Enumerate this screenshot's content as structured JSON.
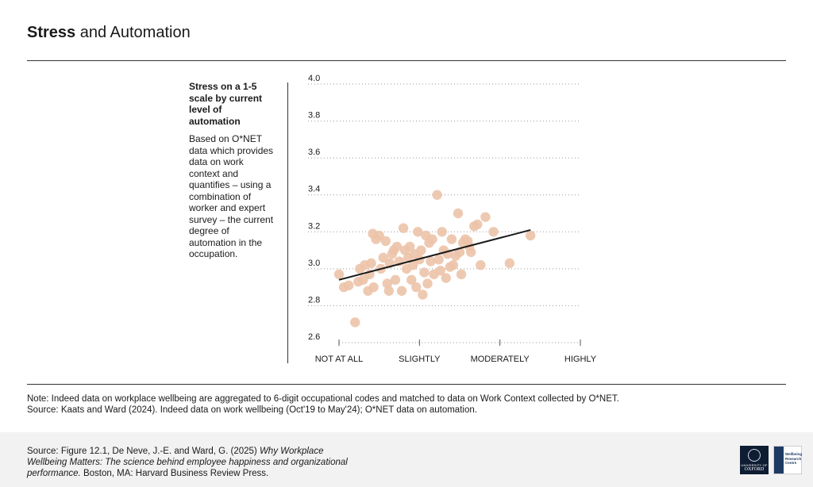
{
  "title": {
    "bold": "Stress",
    "rest": " and Automation"
  },
  "sidebar": {
    "heading": "Stress on a 1-5 scale by current level of automation",
    "description": "Based on O*NET data which provides data on work context and quantifies – using a combination of worker and expert survey – the current degree of automation in the occupation."
  },
  "notes": {
    "line1": "Note: Indeed data on workplace wellbeing are aggregated to 6-digit occupational codes and matched to data on Work Context collected by O*NET.",
    "line2": "Source: Kaats and Ward (2024). Indeed data on work wellbeing (Oct'19 to May'24); O*NET data on automation."
  },
  "footer": {
    "source_prefix": "Source: Figure 12.1, De Neve, J.-E. and Ward, G. (2025) ",
    "source_title": "Why Workplace Wellbeing Matters: The science behind employee happiness and organizational performance.",
    "source_suffix": " Boston, MA: Harvard Business Review Press.",
    "logo1_small": "UNIVERSITY OF",
    "logo1_name": "OXFORD",
    "logo2_text": "Wellbeing Research Centre"
  },
  "colors": {
    "dot": "#ecc3a8",
    "line": "#1a1a1a",
    "grid": "#9a9a9a",
    "text": "#1a1a1a"
  },
  "chart_data": {
    "type": "scatter",
    "xlabel": "",
    "ylabel": "",
    "x_ticks": [
      "NOT AT ALL",
      "SLIGHTLY",
      "MODERATELY",
      "HIGHLY"
    ],
    "x_tick_values": [
      1,
      2,
      3,
      4
    ],
    "xlim": [
      1,
      4
    ],
    "ylim": [
      2.6,
      4.0
    ],
    "y_ticks": [
      "2.6",
      "2.8",
      "3.0",
      "3.2",
      "3.4",
      "3.6",
      "3.8",
      "4.0"
    ],
    "y_tick_values": [
      2.6,
      2.8,
      3.0,
      3.2,
      3.4,
      3.6,
      3.8,
      4.0
    ],
    "grid": "horizontal dotted",
    "trendline": {
      "x": [
        1.0,
        3.38
      ],
      "y": [
        2.94,
        3.21
      ]
    },
    "points": [
      [
        1.0,
        2.97
      ],
      [
        1.06,
        2.9
      ],
      [
        1.12,
        2.91
      ],
      [
        1.2,
        2.71
      ],
      [
        1.24,
        2.93
      ],
      [
        1.26,
        3.0
      ],
      [
        1.3,
        2.94
      ],
      [
        1.32,
        3.02
      ],
      [
        1.36,
        2.88
      ],
      [
        1.38,
        2.97
      ],
      [
        1.4,
        3.03
      ],
      [
        1.42,
        3.19
      ],
      [
        1.43,
        2.9
      ],
      [
        1.46,
        3.16
      ],
      [
        1.5,
        3.18
      ],
      [
        1.52,
        3.0
      ],
      [
        1.55,
        3.06
      ],
      [
        1.58,
        3.15
      ],
      [
        1.6,
        2.92
      ],
      [
        1.62,
        2.88
      ],
      [
        1.63,
        3.03
      ],
      [
        1.66,
        3.08
      ],
      [
        1.68,
        3.1
      ],
      [
        1.7,
        2.94
      ],
      [
        1.72,
        3.12
      ],
      [
        1.75,
        3.04
      ],
      [
        1.78,
        2.88
      ],
      [
        1.8,
        3.22
      ],
      [
        1.82,
        3.1
      ],
      [
        1.84,
        3.0
      ],
      [
        1.86,
        3.06
      ],
      [
        1.88,
        3.12
      ],
      [
        1.9,
        2.94
      ],
      [
        1.92,
        3.02
      ],
      [
        1.94,
        3.08
      ],
      [
        1.96,
        2.9
      ],
      [
        1.98,
        3.2
      ],
      [
        2.0,
        3.05
      ],
      [
        2.02,
        3.1
      ],
      [
        2.04,
        2.86
      ],
      [
        2.06,
        2.98
      ],
      [
        2.08,
        3.18
      ],
      [
        2.1,
        2.92
      ],
      [
        2.12,
        3.14
      ],
      [
        2.14,
        3.04
      ],
      [
        2.16,
        3.16
      ],
      [
        2.18,
        2.97
      ],
      [
        2.22,
        3.4
      ],
      [
        2.24,
        3.05
      ],
      [
        2.26,
        2.99
      ],
      [
        2.28,
        3.2
      ],
      [
        2.3,
        3.1
      ],
      [
        2.33,
        2.95
      ],
      [
        2.35,
        3.08
      ],
      [
        2.38,
        3.01
      ],
      [
        2.4,
        3.16
      ],
      [
        2.42,
        3.02
      ],
      [
        2.45,
        3.07
      ],
      [
        2.48,
        3.3
      ],
      [
        2.5,
        3.09
      ],
      [
        2.52,
        2.97
      ],
      [
        2.54,
        3.14
      ],
      [
        2.57,
        3.16
      ],
      [
        2.6,
        3.15
      ],
      [
        2.62,
        3.12
      ],
      [
        2.64,
        3.09
      ],
      [
        2.68,
        3.23
      ],
      [
        2.72,
        3.24
      ],
      [
        2.76,
        3.02
      ],
      [
        2.82,
        3.28
      ],
      [
        2.92,
        3.2
      ],
      [
        3.12,
        3.03
      ],
      [
        3.38,
        3.18
      ]
    ]
  }
}
